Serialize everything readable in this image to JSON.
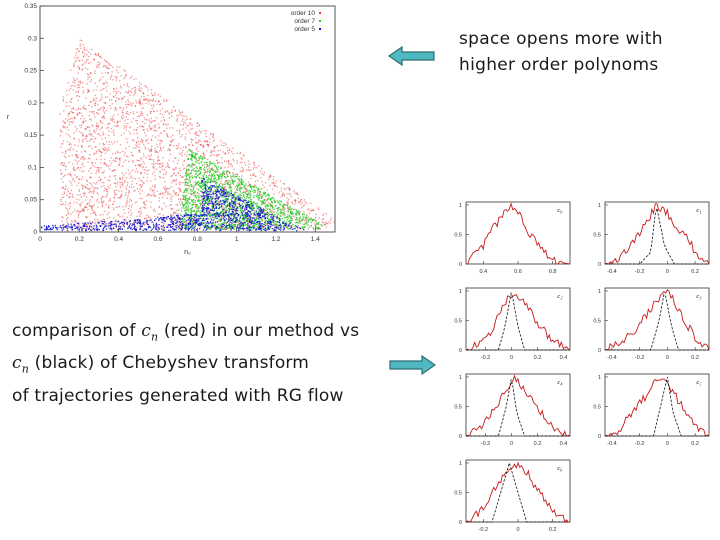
{
  "captions": {
    "top_line1": "space opens more with",
    "top_line2": "higher order polynoms",
    "bottom_line1_a": "comparison of",
    "bottom_math_c": "c",
    "bottom_math_n": "n",
    "bottom_line1_b": "(red) in our method vs",
    "bottom_line2_b": "(black) of Chebyshev transform",
    "bottom_line3": "of trajectories generated with RG flow"
  },
  "arrow_color": "#4fb8c0",
  "chart_data": [
    {
      "type": "scatter",
      "xlabel": "n₀",
      "ylabel": "r",
      "xlim": [
        0,
        1.5
      ],
      "ylim": [
        0,
        0.35
      ],
      "xticks": [
        "0",
        "0.2",
        "0.4",
        "0.6",
        "0.8",
        "1",
        "1.2",
        "1.4"
      ],
      "yticks": [
        "0",
        "0.05",
        "0.1",
        "0.15",
        "0.2",
        "0.25",
        "0.3",
        "0.35"
      ],
      "legend": [
        "order 10",
        "order 7",
        "order 5"
      ],
      "legend_position": "top-right",
      "series_colors": [
        "#e83a3a",
        "#22cc22",
        "#1010cc"
      ],
      "regions": [
        {
          "series": "order 10",
          "vertices": [
            [
              0.2,
              0.3
            ],
            [
              1.5,
              0.02
            ],
            [
              1.5,
              0.005
            ],
            [
              0.1,
              0.005
            ],
            [
              0.1,
              0.2
            ]
          ]
        },
        {
          "series": "order 7",
          "vertices": [
            [
              0.75,
              0.13
            ],
            [
              1.42,
              0.015
            ],
            [
              1.45,
              0.005
            ],
            [
              0.7,
              0.005
            ],
            [
              0.72,
              0.05
            ]
          ]
        },
        {
          "series": "order 5",
          "vertices": [
            [
              0.82,
              0.085
            ],
            [
              1.3,
              0.01
            ],
            [
              1.35,
              0.003
            ],
            [
              0,
              0.003
            ],
            [
              0,
              0.01
            ],
            [
              0.82,
              0.03
            ]
          ]
        }
      ]
    },
    {
      "type": "line",
      "panels": [
        {
          "label": "c₀",
          "xticks": [
            "0.4",
            "0.6",
            "0.8"
          ],
          "yticks": [
            "0",
            "0.5",
            "1"
          ],
          "xlim": [
            0.3,
            0.9
          ],
          "ylim": [
            0,
            1.05
          ],
          "red": [
            [
              0.3,
              0.0
            ],
            [
              0.35,
              0.15
            ],
            [
              0.4,
              0.3
            ],
            [
              0.45,
              0.6
            ],
            [
              0.5,
              0.75
            ],
            [
              0.55,
              1.0
            ],
            [
              0.6,
              0.9
            ],
            [
              0.65,
              0.55
            ],
            [
              0.7,
              0.4
            ],
            [
              0.75,
              0.2
            ],
            [
              0.8,
              0.05
            ],
            [
              0.9,
              0.0
            ]
          ]
        },
        {
          "label": "c₁",
          "xticks": [
            "-0.4",
            "-0.2",
            "0",
            "0.2"
          ],
          "yticks": [
            "0",
            "0.5",
            "1"
          ],
          "xlim": [
            -0.45,
            0.3
          ],
          "ylim": [
            0,
            1.05
          ],
          "red": [
            [
              -0.45,
              0.0
            ],
            [
              -0.35,
              0.1
            ],
            [
              -0.25,
              0.35
            ],
            [
              -0.15,
              0.7
            ],
            [
              -0.08,
              1.0
            ],
            [
              0.0,
              0.85
            ],
            [
              0.08,
              0.6
            ],
            [
              0.15,
              0.4
            ],
            [
              0.22,
              0.15
            ],
            [
              0.3,
              0.0
            ]
          ],
          "black": [
            [
              -0.45,
              0.0
            ],
            [
              -0.2,
              0.0
            ],
            [
              -0.12,
              0.2
            ],
            [
              -0.08,
              1.0
            ],
            [
              -0.02,
              0.3
            ],
            [
              0.05,
              0.0
            ],
            [
              0.3,
              0.0
            ]
          ]
        },
        {
          "label": "c₂",
          "xticks": [
            "-0.2",
            "0",
            "0.2",
            "0.4"
          ],
          "yticks": [
            "0",
            "0.5",
            "1"
          ],
          "xlim": [
            -0.35,
            0.45
          ],
          "ylim": [
            0,
            1.05
          ],
          "red": [
            [
              -0.35,
              0.0
            ],
            [
              -0.25,
              0.1
            ],
            [
              -0.15,
              0.35
            ],
            [
              -0.05,
              0.8
            ],
            [
              0.02,
              1.0
            ],
            [
              0.1,
              0.8
            ],
            [
              0.2,
              0.45
            ],
            [
              0.3,
              0.2
            ],
            [
              0.4,
              0.05
            ],
            [
              0.45,
              0.0
            ]
          ],
          "black": [
            [
              -0.35,
              0.0
            ],
            [
              -0.1,
              0.0
            ],
            [
              -0.05,
              0.4
            ],
            [
              0.0,
              1.0
            ],
            [
              0.05,
              0.4
            ],
            [
              0.1,
              0.0
            ],
            [
              0.45,
              0.0
            ]
          ]
        },
        {
          "label": "c₃",
          "xticks": [
            "-0.4",
            "-0.2",
            "0",
            "0.2"
          ],
          "yticks": [
            "0",
            "0.5",
            "1"
          ],
          "xlim": [
            -0.45,
            0.3
          ],
          "ylim": [
            0,
            1.05
          ],
          "red": [
            [
              -0.45,
              0.0
            ],
            [
              -0.35,
              0.1
            ],
            [
              -0.25,
              0.3
            ],
            [
              -0.15,
              0.6
            ],
            [
              -0.05,
              0.9
            ],
            [
              0.0,
              1.0
            ],
            [
              0.08,
              0.7
            ],
            [
              0.15,
              0.4
            ],
            [
              0.22,
              0.15
            ],
            [
              0.3,
              0.0
            ]
          ],
          "black": [
            [
              -0.45,
              0.0
            ],
            [
              -0.12,
              0.0
            ],
            [
              -0.06,
              0.5
            ],
            [
              -0.02,
              1.0
            ],
            [
              0.03,
              0.4
            ],
            [
              0.08,
              0.0
            ],
            [
              0.3,
              0.0
            ]
          ]
        },
        {
          "label": "c₄",
          "xticks": [
            "-0.2",
            "0",
            "0.2",
            "0.4"
          ],
          "yticks": [
            "0",
            "0.5",
            "1"
          ],
          "xlim": [
            -0.35,
            0.45
          ],
          "ylim": [
            0,
            1.05
          ],
          "red": [
            [
              -0.35,
              0.0
            ],
            [
              -0.25,
              0.1
            ],
            [
              -0.15,
              0.4
            ],
            [
              -0.05,
              0.75
            ],
            [
              0.02,
              1.0
            ],
            [
              0.1,
              0.8
            ],
            [
              0.2,
              0.5
            ],
            [
              0.3,
              0.2
            ],
            [
              0.4,
              0.05
            ],
            [
              0.45,
              0.0
            ]
          ],
          "black": [
            [
              -0.35,
              0.0
            ],
            [
              -0.1,
              0.0
            ],
            [
              -0.04,
              0.5
            ],
            [
              0.0,
              1.0
            ],
            [
              0.04,
              0.4
            ],
            [
              0.1,
              0.0
            ],
            [
              0.45,
              0.0
            ]
          ]
        },
        {
          "label": "c₅",
          "xticks": [
            "-0.4",
            "-0.2",
            "0",
            "0.2"
          ],
          "yticks": [
            "0",
            "0.5",
            "1"
          ],
          "xlim": [
            -0.45,
            0.3
          ],
          "ylim": [
            0,
            1.05
          ],
          "red": [
            [
              -0.45,
              0.0
            ],
            [
              -0.35,
              0.1
            ],
            [
              -0.25,
              0.4
            ],
            [
              -0.15,
              0.7
            ],
            [
              -0.07,
              1.0
            ],
            [
              0.0,
              0.9
            ],
            [
              0.08,
              0.6
            ],
            [
              0.15,
              0.35
            ],
            [
              0.22,
              0.1
            ],
            [
              0.3,
              0.0
            ]
          ],
          "black": [
            [
              -0.45,
              0.0
            ],
            [
              -0.1,
              0.0
            ],
            [
              -0.04,
              0.6
            ],
            [
              0.0,
              1.0
            ],
            [
              0.04,
              0.4
            ],
            [
              0.1,
              0.0
            ],
            [
              0.3,
              0.0
            ]
          ]
        },
        {
          "label": "c₆",
          "xticks": [
            "-0.2",
            "0",
            "0.2"
          ],
          "yticks": [
            "0",
            "0.5",
            "1"
          ],
          "xlim": [
            -0.3,
            0.3
          ],
          "ylim": [
            0,
            1.05
          ],
          "red": [
            [
              -0.3,
              0.0
            ],
            [
              -0.22,
              0.15
            ],
            [
              -0.15,
              0.5
            ],
            [
              -0.08,
              0.8
            ],
            [
              0.0,
              1.0
            ],
            [
              0.06,
              0.8
            ],
            [
              0.12,
              0.5
            ],
            [
              0.2,
              0.2
            ],
            [
              0.3,
              0.0
            ]
          ],
          "black": [
            [
              -0.3,
              0.0
            ],
            [
              -0.15,
              0.0
            ],
            [
              -0.1,
              0.5
            ],
            [
              -0.05,
              1.0
            ],
            [
              0.0,
              0.5
            ],
            [
              0.05,
              0.0
            ],
            [
              0.3,
              0.0
            ]
          ]
        }
      ]
    }
  ]
}
